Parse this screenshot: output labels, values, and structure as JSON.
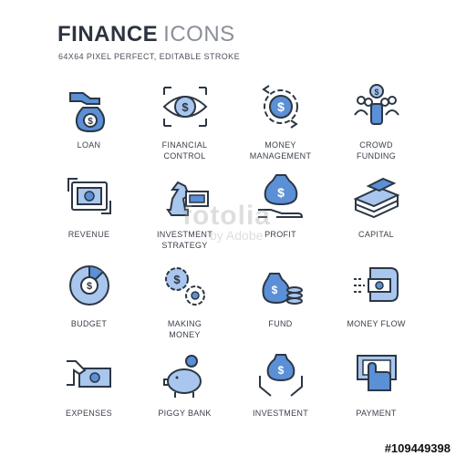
{
  "header": {
    "title_bold": "FINANCE",
    "title_light": "ICONS",
    "subtitle": "64X64 PIXEL PERFECT, EDITABLE STROKE"
  },
  "colors": {
    "stroke": "#2c3744",
    "accent": "#5b8fd6",
    "accent_light": "#a9c6ee"
  },
  "icons": [
    {
      "icon": "loan-icon",
      "lines": [
        "LOAN"
      ]
    },
    {
      "icon": "financial-control-icon",
      "lines": [
        "FINANCIAL",
        "CONTROL"
      ]
    },
    {
      "icon": "money-management-icon",
      "lines": [
        "MONEY",
        "MANAGEMENT"
      ]
    },
    {
      "icon": "crowd-funding-icon",
      "lines": [
        "CROWD",
        "FUNDING"
      ]
    },
    {
      "icon": "revenue-icon",
      "lines": [
        "REVENUE"
      ]
    },
    {
      "icon": "investment-strategy-icon",
      "lines": [
        "INVESTMENT",
        "STRATEGY"
      ]
    },
    {
      "icon": "profit-icon",
      "lines": [
        "PROFIT"
      ]
    },
    {
      "icon": "capital-icon",
      "lines": [
        "CAPITAL"
      ]
    },
    {
      "icon": "budget-icon",
      "lines": [
        "BUDGET"
      ]
    },
    {
      "icon": "making-money-icon",
      "lines": [
        "MAKING",
        "MONEY"
      ]
    },
    {
      "icon": "fund-icon",
      "lines": [
        "FUND"
      ]
    },
    {
      "icon": "money-flow-icon",
      "lines": [
        "MONEY FLOW"
      ]
    },
    {
      "icon": "expenses-icon",
      "lines": [
        "EXPENSES"
      ]
    },
    {
      "icon": "piggy-bank-icon",
      "lines": [
        "PIGGY BANK"
      ]
    },
    {
      "icon": "investment-icon",
      "lines": [
        "INVESTMENT"
      ]
    },
    {
      "icon": "payment-icon",
      "lines": [
        "PAYMENT"
      ]
    }
  ],
  "watermark": {
    "line1": "fotolia",
    "line2": "by Adobe"
  },
  "stock_id": "#109449398"
}
